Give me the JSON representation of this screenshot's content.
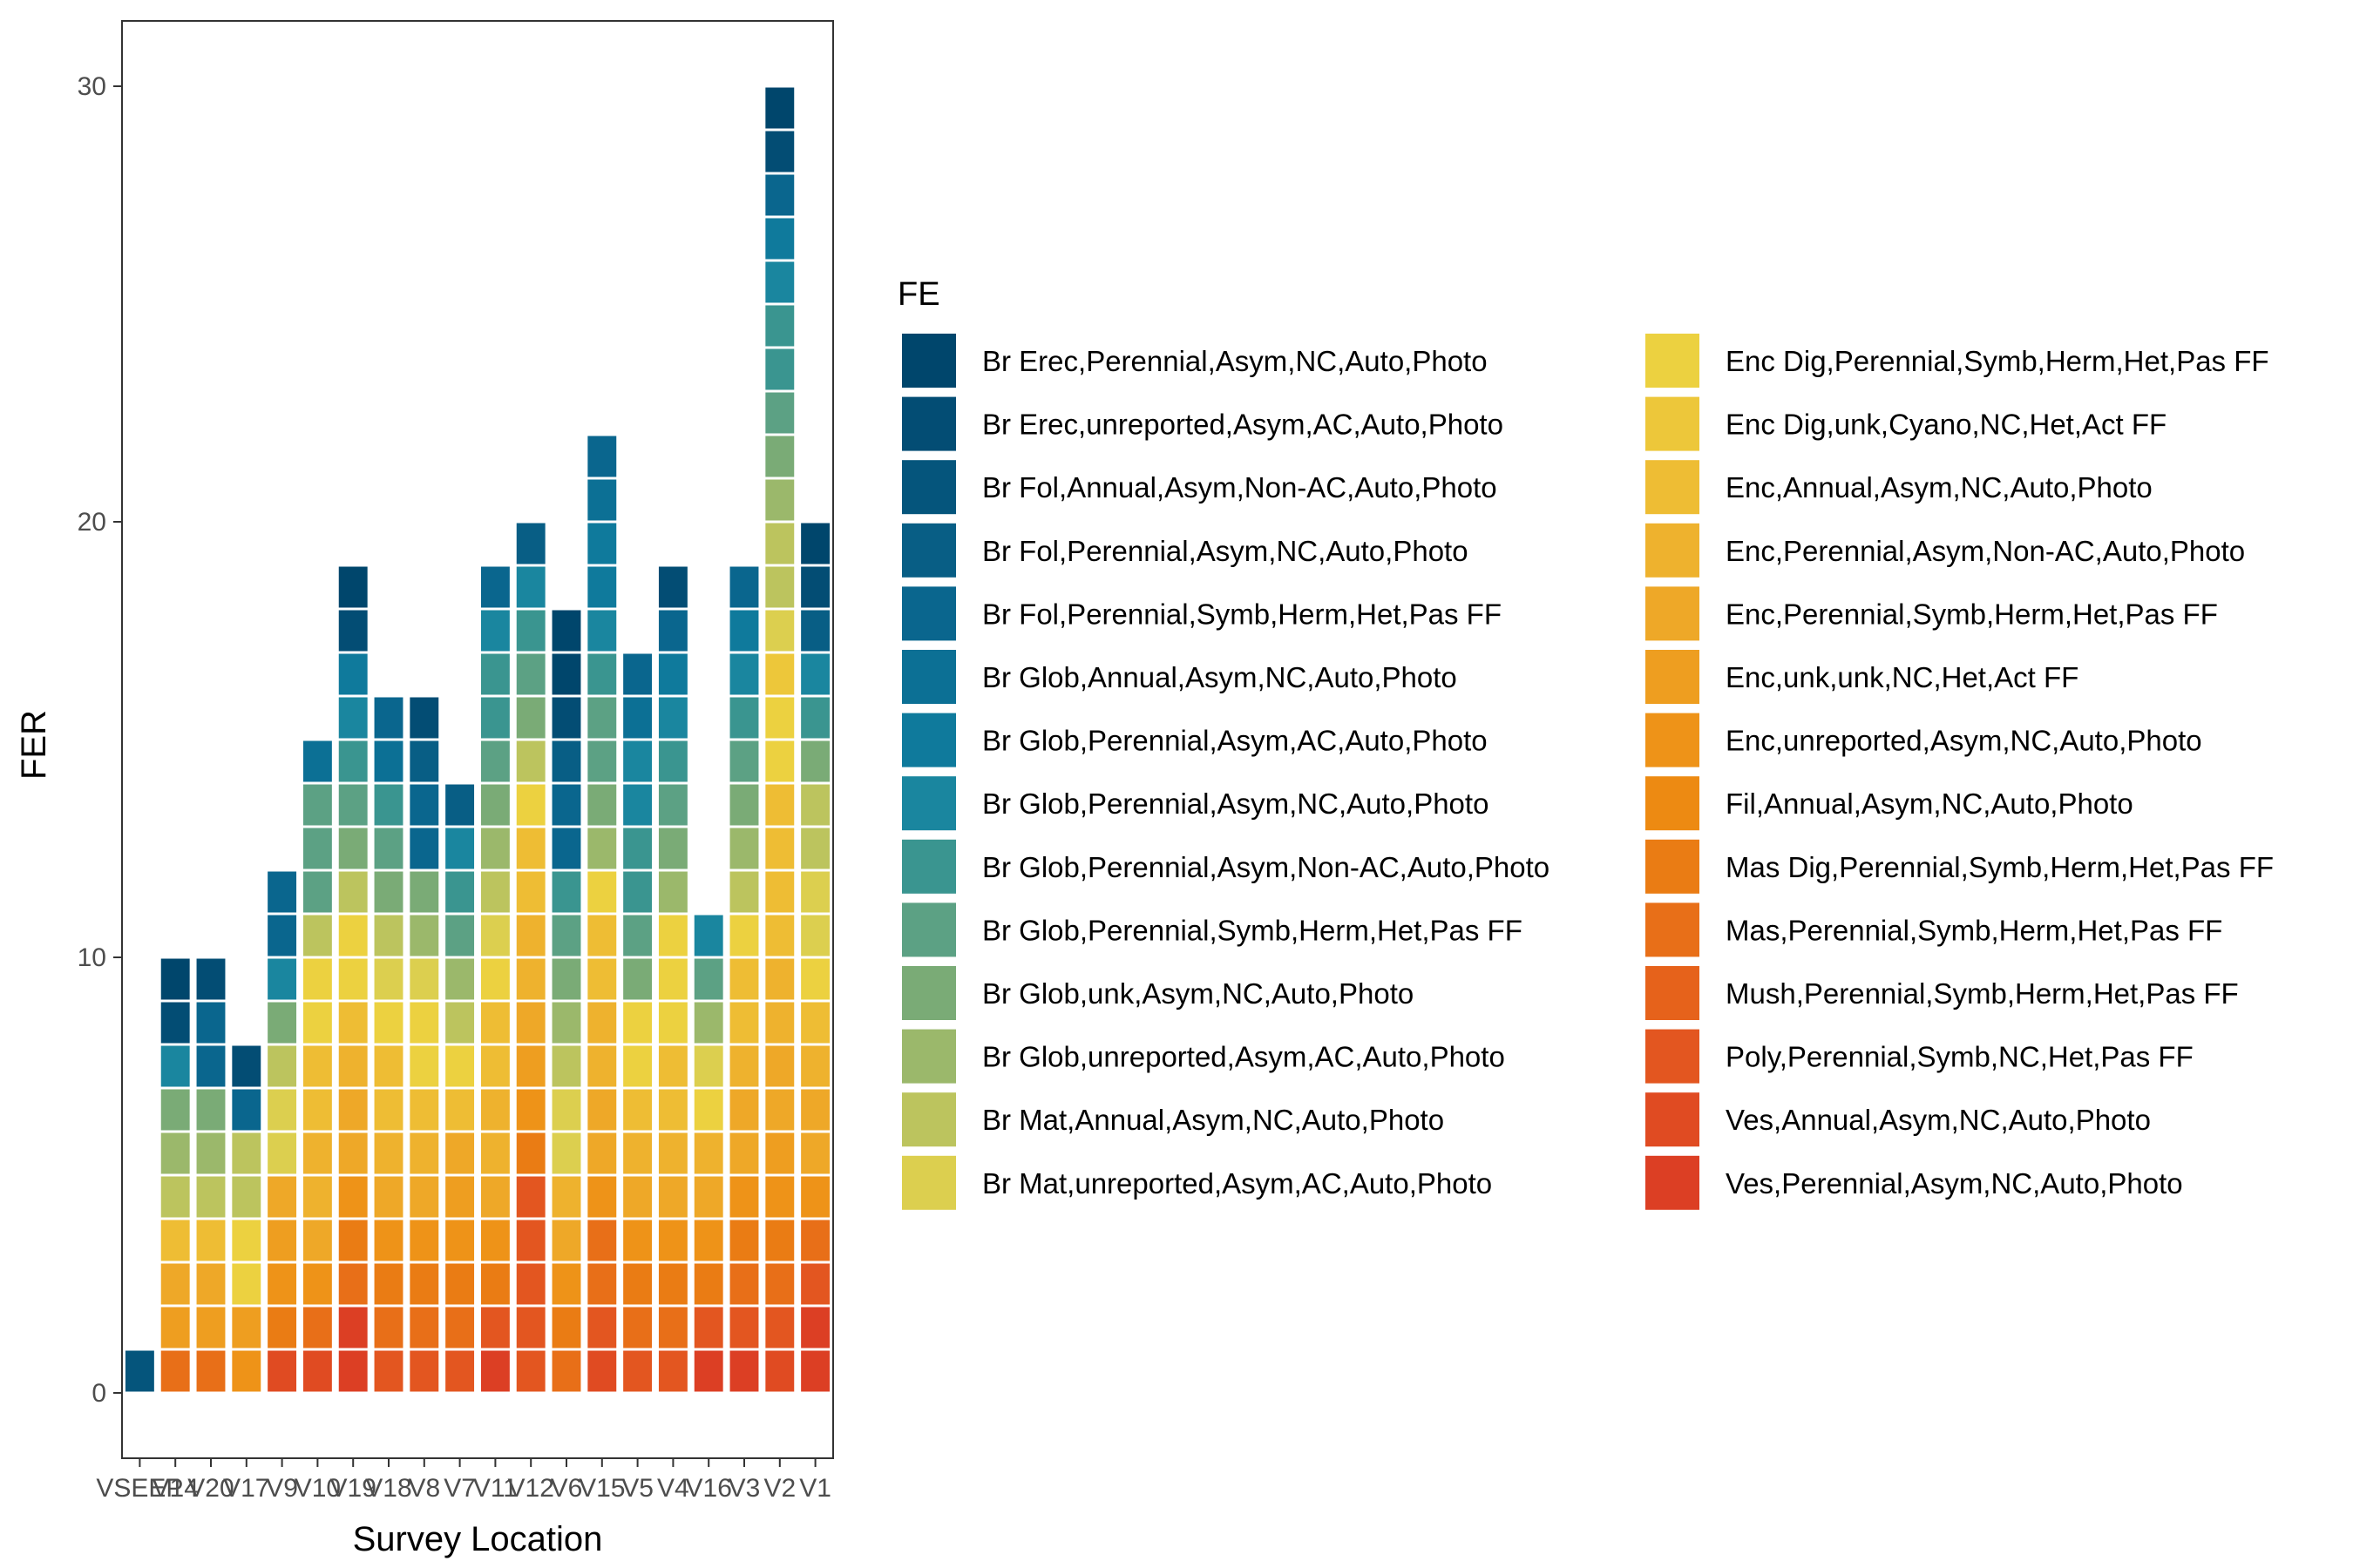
{
  "chart_data": {
    "type": "bar",
    "stacked": true,
    "title": "",
    "xlabel": "Survey Location",
    "ylabel": "FER",
    "ylim": [
      -1.5,
      31.5
    ],
    "yticks": [
      0,
      10,
      20,
      30
    ],
    "grid": false,
    "legend_title": "FE",
    "legend_placement": "right",
    "categories": [
      "VSEEP",
      "V14",
      "V20",
      "V17",
      "V9",
      "V10",
      "V19",
      "V18",
      "V8",
      "V7",
      "V11",
      "V12",
      "V6",
      "V15",
      "V5",
      "V4",
      "V16",
      "V3",
      "V2",
      "V1"
    ],
    "totals": [
      1,
      10,
      10,
      8,
      12,
      15,
      19,
      16,
      16,
      14,
      19,
      20,
      18,
      22,
      17,
      19,
      11,
      19,
      30,
      20
    ],
    "legend": [
      {
        "label": "Br Erec,Perennial,Asym,NC,Auto,Photo",
        "color": "#00466c"
      },
      {
        "label": "Br Erec,unreported,Asym,AC,Auto,Photo",
        "color": "#034d74"
      },
      {
        "label": "Br Fol,Annual,Asym,Non-AC,Auto,Photo",
        "color": "#05557c"
      },
      {
        "label": "Br Fol,Perennial,Asym,NC,Auto,Photo",
        "color": "#085e85"
      },
      {
        "label": "Br Fol,Perennial,Symb,Herm,Het,Pas FF",
        "color": "#0a668e"
      },
      {
        "label": "Br Glob,Annual,Asym,NC,Auto,Photo",
        "color": "#0c7095"
      },
      {
        "label": "Br Glob,Perennial,Asym,AC,Auto,Photo",
        "color": "#0f7a9c"
      },
      {
        "label": "Br Glob,Perennial,Asym,NC,Auto,Photo",
        "color": "#1a869f"
      },
      {
        "label": "Br Glob,Perennial,Asym,Non-AC,Auto,Photo",
        "color": "#3a9590"
      },
      {
        "label": "Br Glob,Perennial,Symb,Herm,Het,Pas FF",
        "color": "#5ca184"
      },
      {
        "label": "Br Glob,unk,Asym,NC,Auto,Photo",
        "color": "#7aab76"
      },
      {
        "label": "Br Glob,unreported,Asym,AC,Auto,Photo",
        "color": "#9bb86b"
      },
      {
        "label": "Br Mat,Annual,Asym,NC,Auto,Photo",
        "color": "#bcc45e"
      },
      {
        "label": "Br Mat,unreported,Asym,AC,Auto,Photo",
        "color": "#dccf4f"
      },
      {
        "label": "Enc Dig,Perennial,Symb,Herm,Het,Pas FF",
        "color": "#ecd140"
      },
      {
        "label": "Enc Dig,unk,Cyano,NC,Het,Act FF",
        "color": "#edc73a"
      },
      {
        "label": "Enc,Annual,Asym,NC,Auto,Photo",
        "color": "#eebd34"
      },
      {
        "label": "Enc,Perennial,Asym,Non-AC,Auto,Photo",
        "color": "#eeb22e"
      },
      {
        "label": "Enc,Perennial,Symb,Herm,Het,Pas FF",
        "color": "#eea828"
      },
      {
        "label": "Enc,unk,unk,NC,Het,Act FF",
        "color": "#ee9e20"
      },
      {
        "label": "Enc,unreported,Asym,NC,Auto,Photo",
        "color": "#ee9318"
      },
      {
        "label": "Fil,Annual,Asym,NC,Auto,Photo",
        "color": "#ed8a12"
      },
      {
        "label": "Mas Dig,Perennial,Symb,Herm,Het,Pas FF",
        "color": "#ea7c14"
      },
      {
        "label": "Mas,Perennial,Symb,Herm,Het,Pas FF",
        "color": "#e86f18"
      },
      {
        "label": "Mush,Perennial,Symb,Herm,Het,Pas FF",
        "color": "#e6621b"
      },
      {
        "label": "Poly,Perennial,Symb,NC,Het,Pas FF",
        "color": "#e35620"
      },
      {
        "label": "Ves,Annual,Asym,NC,Auto,Photo",
        "color": "#e04b22"
      },
      {
        "label": "Ves,Perennial,Asym,NC,Auto,Photo",
        "color": "#dc3f24"
      }
    ],
    "stacks": [
      [
        "#05557c"
      ],
      [
        "#e86f18",
        "#ee9e20",
        "#eea828",
        "#eebd34",
        "#bcc45e",
        "#9bb86b",
        "#7aab76",
        "#1a869f",
        "#034d74",
        "#00466c"
      ],
      [
        "#e86f18",
        "#ee9e20",
        "#eea828",
        "#eebd34",
        "#bcc45e",
        "#9bb86b",
        "#7aab76",
        "#0a668e",
        "#0a668e",
        "#034d74"
      ],
      [
        "#ee9318",
        "#ee9e20",
        "#ecd140",
        "#ecd140",
        "#bcc45e",
        "#bcc45e",
        "#0a668e",
        "#034d74"
      ],
      [
        "#e04b22",
        "#ea7c14",
        "#ee9318",
        "#ee9e20",
        "#eea828",
        "#dccf4f",
        "#dccf4f",
        "#bcc45e",
        "#7aab76",
        "#1a869f",
        "#0a668e",
        "#0a668e"
      ],
      [
        "#e04b22",
        "#e86f18",
        "#ee9318",
        "#eea828",
        "#eeb22e",
        "#eeb22e",
        "#eebd34",
        "#eebd34",
        "#ecd140",
        "#ecd140",
        "#bcc45e",
        "#5ca184",
        "#5ca184",
        "#5ca184",
        "#0c7095"
      ],
      [
        "#dc3f24",
        "#dc3f24",
        "#e86f18",
        "#ea7c14",
        "#ee9318",
        "#eea828",
        "#eea828",
        "#eeb22e",
        "#eebd34",
        "#ecd140",
        "#ecd140",
        "#bcc45e",
        "#7aab76",
        "#5ca184",
        "#3a9590",
        "#1a869f",
        "#0f7a9c",
        "#034d74",
        "#00466c"
      ],
      [
        "#e35620",
        "#e86f18",
        "#ea7c14",
        "#ee9318",
        "#eea828",
        "#eeb22e",
        "#eebd34",
        "#eebd34",
        "#ecd140",
        "#dccf4f",
        "#bcc45e",
        "#7aab76",
        "#5ca184",
        "#3a9590",
        "#0c7095",
        "#0a668e"
      ],
      [
        "#e35620",
        "#e86f18",
        "#ea7c14",
        "#ee9318",
        "#eea828",
        "#eeb22e",
        "#eebd34",
        "#ecd140",
        "#ecd140",
        "#dccf4f",
        "#9bb86b",
        "#7aab76",
        "#0a668e",
        "#0a668e",
        "#085e85",
        "#034d74"
      ],
      [
        "#e35620",
        "#e86f18",
        "#ea7c14",
        "#ee9318",
        "#ee9e20",
        "#eea828",
        "#eebd34",
        "#ecd140",
        "#bcc45e",
        "#9bb86b",
        "#5ca184",
        "#3a9590",
        "#1a869f",
        "#085e85"
      ],
      [
        "#dc3f24",
        "#e35620",
        "#ea7c14",
        "#ee9318",
        "#eea828",
        "#eeb22e",
        "#eeb22e",
        "#eebd34",
        "#eebd34",
        "#ecd140",
        "#dccf4f",
        "#bcc45e",
        "#9bb86b",
        "#7aab76",
        "#5ca184",
        "#3a9590",
        "#3a9590",
        "#1a869f",
        "#0a668e"
      ],
      [
        "#e35620",
        "#e35620",
        "#e35620",
        "#e35620",
        "#e35620",
        "#ea7c14",
        "#ee9318",
        "#ee9e20",
        "#eea828",
        "#eeb22e",
        "#eeb22e",
        "#eebd34",
        "#eebd34",
        "#ecd140",
        "#bcc45e",
        "#7aab76",
        "#5ca184",
        "#3a9590",
        "#1a869f",
        "#085e85"
      ],
      [
        "#e86f18",
        "#ea7c14",
        "#ee9318",
        "#eea828",
        "#eeb22e",
        "#dccf4f",
        "#dccf4f",
        "#bcc45e",
        "#9bb86b",
        "#7aab76",
        "#5ca184",
        "#3a9590",
        "#0a668e",
        "#0a668e",
        "#085e85",
        "#034d74",
        "#00466c",
        "#00466c"
      ],
      [
        "#e04b22",
        "#e35620",
        "#e86f18",
        "#e86f18",
        "#ee9318",
        "#eea828",
        "#eea828",
        "#eeb22e",
        "#eeb22e",
        "#eebd34",
        "#eebd34",
        "#ecd140",
        "#9bb86b",
        "#7aab76",
        "#5ca184",
        "#5ca184",
        "#3a9590",
        "#1a869f",
        "#0f7a9c",
        "#0f7a9c",
        "#0c7095",
        "#0a668e"
      ],
      [
        "#e35620",
        "#e86f18",
        "#ea7c14",
        "#ee9318",
        "#eea828",
        "#eeb22e",
        "#eebd34",
        "#ecd140",
        "#ecd140",
        "#7aab76",
        "#5ca184",
        "#3a9590",
        "#3a9590",
        "#1a869f",
        "#1a869f",
        "#0c7095",
        "#0a668e"
      ],
      [
        "#e35620",
        "#e86f18",
        "#ea7c14",
        "#ee9318",
        "#eea828",
        "#eeb22e",
        "#eebd34",
        "#eebd34",
        "#ecd140",
        "#ecd140",
        "#ecd140",
        "#9bb86b",
        "#7aab76",
        "#5ca184",
        "#3a9590",
        "#1a869f",
        "#0f7a9c",
        "#0a668e",
        "#034d74"
      ],
      [
        "#dc3f24",
        "#e35620",
        "#ea7c14",
        "#ee9318",
        "#eea828",
        "#eeb22e",
        "#ecd140",
        "#dccf4f",
        "#9bb86b",
        "#5ca184",
        "#1a869f"
      ],
      [
        "#dc3f24",
        "#e35620",
        "#e86f18",
        "#ea7c14",
        "#ee9318",
        "#eea828",
        "#eea828",
        "#eeb22e",
        "#eebd34",
        "#eebd34",
        "#ecd140",
        "#bcc45e",
        "#9bb86b",
        "#7aab76",
        "#5ca184",
        "#3a9590",
        "#1a869f",
        "#0f7a9c",
        "#0a668e"
      ],
      [
        "#e04b22",
        "#e35620",
        "#e86f18",
        "#ea7c14",
        "#ee9318",
        "#ee9e20",
        "#eea828",
        "#eea828",
        "#eeb22e",
        "#eeb22e",
        "#eebd34",
        "#eebd34",
        "#eebd34",
        "#eebd34",
        "#ecd140",
        "#ecd140",
        "#edc73a",
        "#dccf4f",
        "#bcc45e",
        "#bcc45e",
        "#9bb86b",
        "#7aab76",
        "#5ca184",
        "#3a9590",
        "#3a9590",
        "#1a869f",
        "#0f7a9c",
        "#0a668e",
        "#034d74",
        "#00466c"
      ],
      [
        "#dc3f24",
        "#dc3f24",
        "#e35620",
        "#e86f18",
        "#ee9318",
        "#eea828",
        "#eea828",
        "#eeb22e",
        "#eebd34",
        "#ecd140",
        "#dccf4f",
        "#dccf4f",
        "#bcc45e",
        "#bcc45e",
        "#7aab76",
        "#3a9590",
        "#1a869f",
        "#085e85",
        "#034d74",
        "#00466c"
      ]
    ]
  }
}
